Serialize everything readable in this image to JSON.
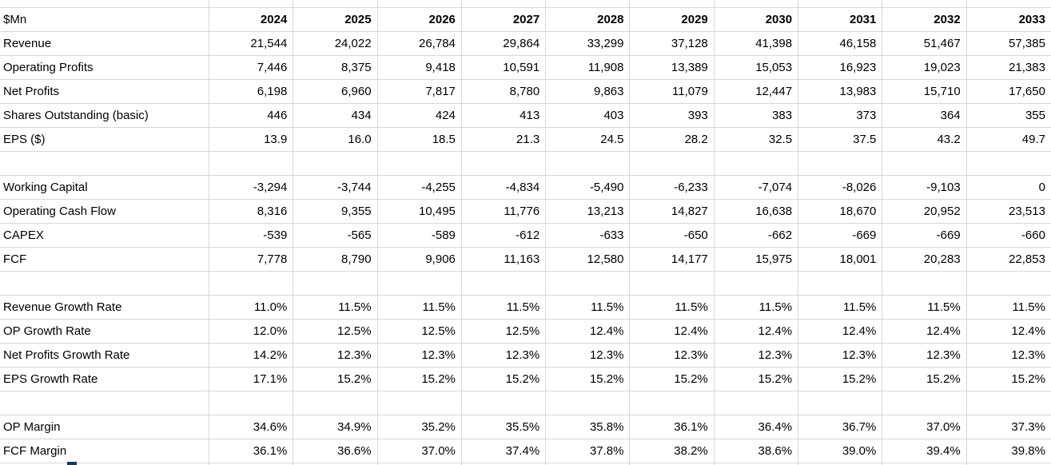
{
  "sheet": {
    "corner_label": "$Mn",
    "years": [
      "2024",
      "2025",
      "2026",
      "2027",
      "2028",
      "2029",
      "2030",
      "2031",
      "2032",
      "2033"
    ],
    "rows": [
      {
        "label": "Revenue",
        "values": [
          "21,544",
          "24,022",
          "26,784",
          "29,864",
          "33,299",
          "37,128",
          "41,398",
          "46,158",
          "51,467",
          "57,385"
        ]
      },
      {
        "label": "Operating Profits",
        "values": [
          "7,446",
          "8,375",
          "9,418",
          "10,591",
          "11,908",
          "13,389",
          "15,053",
          "16,923",
          "19,023",
          "21,383"
        ]
      },
      {
        "label": "Net Profits",
        "values": [
          "6,198",
          "6,960",
          "7,817",
          "8,780",
          "9,863",
          "11,079",
          "12,447",
          "13,983",
          "15,710",
          "17,650"
        ]
      },
      {
        "label": "Shares Outstanding (basic)",
        "values": [
          "446",
          "434",
          "424",
          "413",
          "403",
          "393",
          "383",
          "373",
          "364",
          "355"
        ]
      },
      {
        "label": "EPS ($)",
        "values": [
          "13.9",
          "16.0",
          "18.5",
          "21.3",
          "24.5",
          "28.2",
          "32.5",
          "37.5",
          "43.2",
          "49.7"
        ]
      },
      {
        "label": "",
        "values": [
          "",
          "",
          "",
          "",
          "",
          "",
          "",
          "",
          "",
          ""
        ]
      },
      {
        "label": "Working Capital",
        "values": [
          "-3,294",
          "-3,744",
          "-4,255",
          "-4,834",
          "-5,490",
          "-6,233",
          "-7,074",
          "-8,026",
          "-9,103",
          "0"
        ]
      },
      {
        "label": "Operating Cash Flow",
        "values": [
          "8,316",
          "9,355",
          "10,495",
          "11,776",
          "13,213",
          "14,827",
          "16,638",
          "18,670",
          "20,952",
          "23,513"
        ]
      },
      {
        "label": "CAPEX",
        "values": [
          "-539",
          "-565",
          "-589",
          "-612",
          "-633",
          "-650",
          "-662",
          "-669",
          "-669",
          "-660"
        ]
      },
      {
        "label": "FCF",
        "values": [
          "7,778",
          "8,790",
          "9,906",
          "11,163",
          "12,580",
          "14,177",
          "15,975",
          "18,001",
          "20,283",
          "22,853"
        ]
      },
      {
        "label": "",
        "values": [
          "",
          "",
          "",
          "",
          "",
          "",
          "",
          "",
          "",
          ""
        ]
      },
      {
        "label": "Revenue Growth Rate",
        "values": [
          "11.0%",
          "11.5%",
          "11.5%",
          "11.5%",
          "11.5%",
          "11.5%",
          "11.5%",
          "11.5%",
          "11.5%",
          "11.5%"
        ]
      },
      {
        "label": "OP Growth Rate",
        "values": [
          "12.0%",
          "12.5%",
          "12.5%",
          "12.5%",
          "12.4%",
          "12.4%",
          "12.4%",
          "12.4%",
          "12.4%",
          "12.4%"
        ]
      },
      {
        "label": "Net Profits Growth Rate",
        "values": [
          "14.2%",
          "12.3%",
          "12.3%",
          "12.3%",
          "12.3%",
          "12.3%",
          "12.3%",
          "12.3%",
          "12.3%",
          "12.3%"
        ]
      },
      {
        "label": "EPS Growth Rate",
        "values": [
          "17.1%",
          "15.2%",
          "15.2%",
          "15.2%",
          "15.2%",
          "15.2%",
          "15.2%",
          "15.2%",
          "15.2%",
          "15.2%"
        ]
      },
      {
        "label": "",
        "values": [
          "",
          "",
          "",
          "",
          "",
          "",
          "",
          "",
          "",
          ""
        ]
      },
      {
        "label": "OP Margin",
        "values": [
          "34.6%",
          "34.9%",
          "35.2%",
          "35.5%",
          "35.8%",
          "36.1%",
          "36.4%",
          "36.7%",
          "37.0%",
          "37.3%"
        ]
      },
      {
        "label": "FCF Margin",
        "values": [
          "36.1%",
          "36.6%",
          "37.0%",
          "37.4%",
          "37.8%",
          "38.2%",
          "38.6%",
          "39.0%",
          "39.4%",
          "39.8%"
        ]
      }
    ],
    "colors": {
      "gridline": "#d6d6d6",
      "text": "#000000",
      "background": "#ffffff",
      "clipped_next_row_text": "#17375e"
    }
  }
}
